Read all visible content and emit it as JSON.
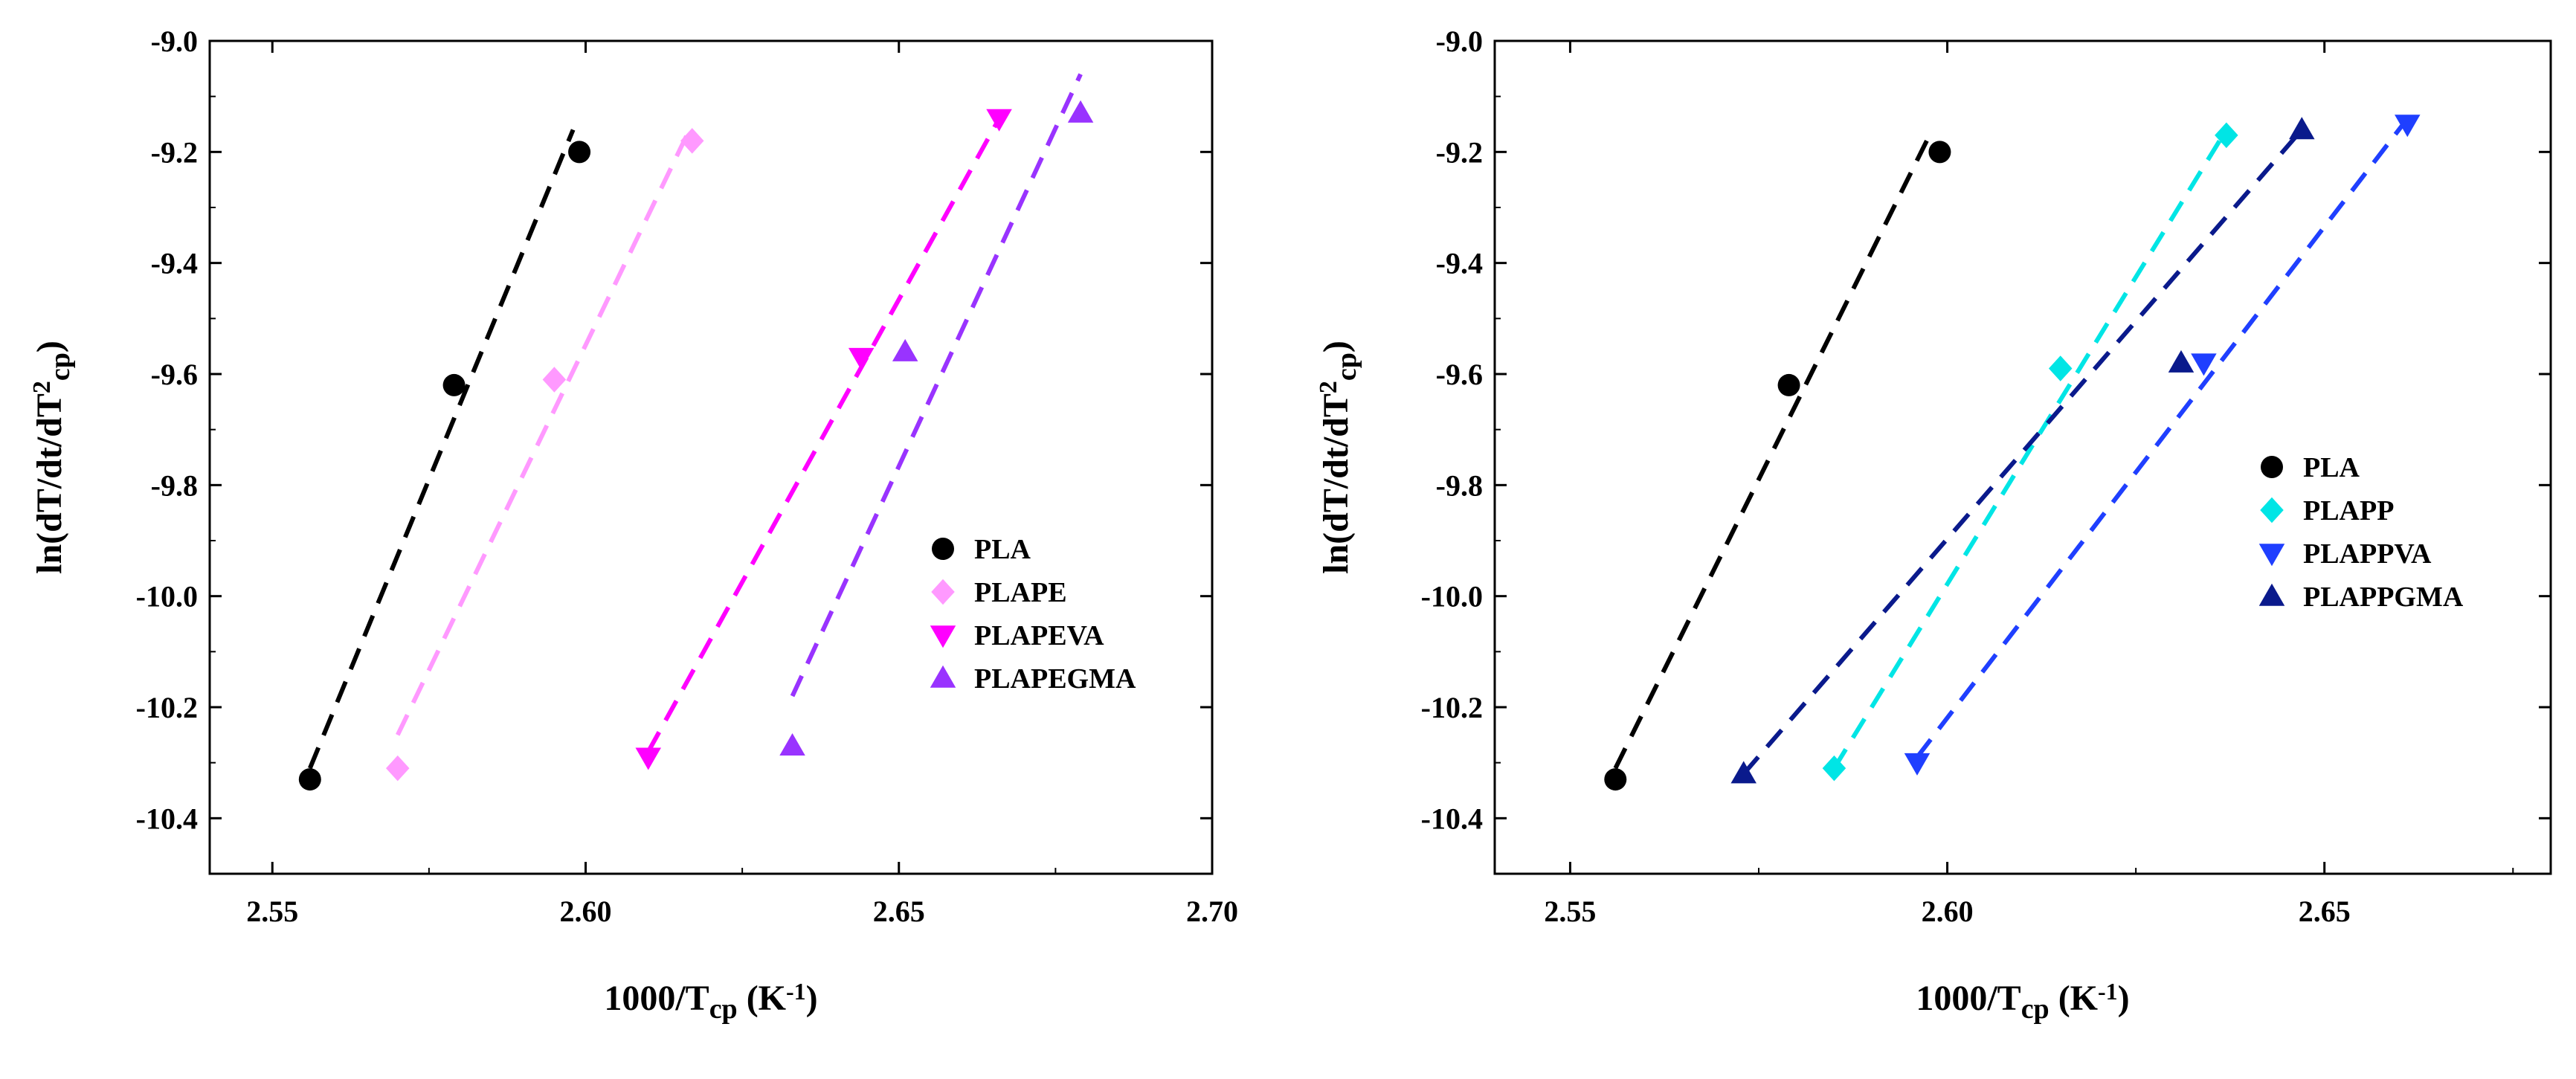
{
  "chart_data": [
    {
      "type": "scatter",
      "title": "",
      "xlabel": {
        "main": "1000/T",
        "sub": "cp",
        "unit_open": " (K",
        "unit_sup": "-1",
        "unit_close": ")"
      },
      "ylabel": {
        "main": "ln(dT/dt/dT",
        "sup": "2",
        "sub": "cp",
        "close": ")"
      },
      "xlim": [
        2.54,
        2.7
      ],
      "ylim": [
        -10.5,
        -9.0
      ],
      "xticks": [
        2.55,
        2.6,
        2.65,
        2.7
      ],
      "xtick_labels": [
        "2.55",
        "2.60",
        "2.65",
        "2.70"
      ],
      "yticks": [
        -9.0,
        -9.2,
        -9.4,
        -9.6,
        -9.8,
        -10.0,
        -10.2,
        -10.4
      ],
      "ytick_labels": [
        "-9.0",
        "-9.2",
        "-9.4",
        "-9.6",
        "-9.8",
        "-10.0",
        "-10.2",
        "-10.4"
      ],
      "legend_position": "right-middle",
      "series": [
        {
          "name": "PLA",
          "marker": "circle",
          "color": "#000000",
          "x": [
            2.556,
            2.579,
            2.599
          ],
          "y": [
            -10.33,
            -9.62,
            -9.2
          ],
          "fit": {
            "x": [
              2.556,
              2.598
            ],
            "y": [
              -10.31,
              -9.16
            ]
          }
        },
        {
          "name": "PLAPE",
          "marker": "diamond",
          "color": "#ff99ff",
          "x": [
            2.57,
            2.595,
            2.617
          ],
          "y": [
            -10.31,
            -9.61,
            -9.18
          ],
          "fit": {
            "x": [
              2.57,
              2.617
            ],
            "y": [
              -10.25,
              -9.15
            ]
          }
        },
        {
          "name": "PLAPEVA",
          "marker": "triangle-down",
          "color": "#ff00ff",
          "x": [
            2.61,
            2.644,
            2.666
          ],
          "y": [
            -10.29,
            -9.57,
            -9.14
          ],
          "fit": {
            "x": [
              2.61,
              2.666
            ],
            "y": [
              -10.28,
              -9.14
            ]
          }
        },
        {
          "name": "PLAPEGMA",
          "marker": "triangle-up",
          "color": "#9933ff",
          "x": [
            2.633,
            2.651,
            2.679
          ],
          "y": [
            -10.27,
            -9.56,
            -9.13
          ],
          "fit": {
            "x": [
              2.633,
              2.679
            ],
            "y": [
              -10.18,
              -9.06
            ]
          }
        }
      ]
    },
    {
      "type": "scatter",
      "title": "",
      "xlabel": {
        "main": "1000/T",
        "sub": "cp",
        "unit_open": " (K",
        "unit_sup": "-1",
        "unit_close": ")"
      },
      "ylabel": {
        "main": "ln(dT/dt/dT",
        "sup": "2",
        "sub": "cp",
        "close": ")"
      },
      "xlim": [
        2.54,
        2.68
      ],
      "ylim": [
        -10.5,
        -9.0
      ],
      "xticks": [
        2.55,
        2.6,
        2.65
      ],
      "xtick_labels": [
        "2.55",
        "2.60",
        "2.65"
      ],
      "yticks": [
        -9.0,
        -9.2,
        -9.4,
        -9.6,
        -9.8,
        -10.0,
        -10.2,
        -10.4
      ],
      "ytick_labels": [
        "-9.0",
        "-9.2",
        "-9.4",
        "-9.6",
        "-9.8",
        "-10.0",
        "-10.2",
        "-10.4"
      ],
      "legend_position": "right-middle",
      "series": [
        {
          "name": "PLA",
          "marker": "circle",
          "color": "#000000",
          "x": [
            2.556,
            2.579,
            2.599
          ],
          "y": [
            -10.33,
            -9.62,
            -9.2
          ],
          "fit": {
            "x": [
              2.556,
              2.598
            ],
            "y": [
              -10.31,
              -9.16
            ]
          }
        },
        {
          "name": "PLAPP",
          "marker": "diamond",
          "color": "#00e5e5",
          "x": [
            2.585,
            2.615,
            2.637
          ],
          "y": [
            -10.31,
            -9.59,
            -9.17
          ],
          "fit": {
            "x": [
              2.585,
              2.637
            ],
            "y": [
              -10.31,
              -9.16
            ]
          }
        },
        {
          "name": "PLAPPVA",
          "marker": "triangle-down",
          "color": "#1f3fff",
          "x": [
            2.596,
            2.634,
            2.661
          ],
          "y": [
            -10.3,
            -9.58,
            -9.15
          ],
          "fit": {
            "x": [
              2.596,
              2.661
            ],
            "y": [
              -10.29,
              -9.14
            ]
          }
        },
        {
          "name": "PLAPPGMA",
          "marker": "triangle-up",
          "color": "#0a1a8c",
          "x": [
            2.573,
            2.631,
            2.647
          ],
          "y": [
            -10.32,
            -9.58,
            -9.16
          ],
          "fit": {
            "x": [
              2.573,
              2.647
            ],
            "y": [
              -10.32,
              -9.16
            ]
          }
        }
      ]
    }
  ]
}
